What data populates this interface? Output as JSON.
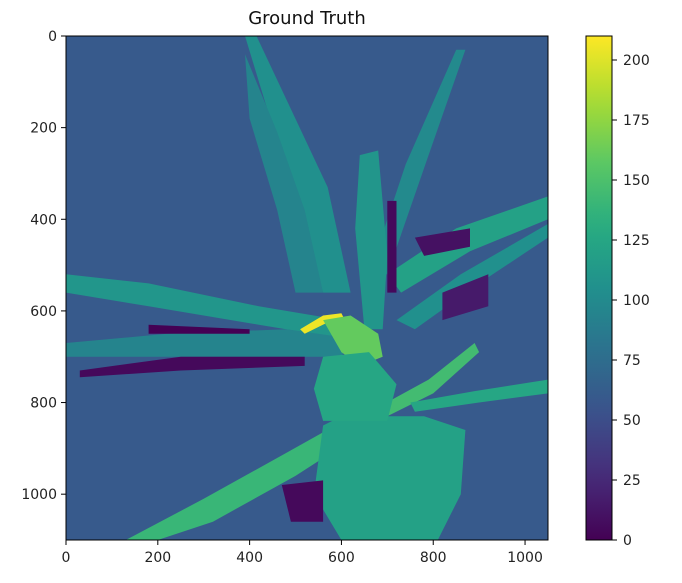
{
  "chart_data": [
    {
      "type": "heatmap",
      "title": "Ground Truth",
      "xlabel": "",
      "ylabel": "",
      "xlim": [
        0,
        1050
      ],
      "ylim": [
        1100,
        0
      ],
      "x_ticks": [
        0,
        200,
        400,
        600,
        800,
        1000
      ],
      "y_ticks": [
        0,
        200,
        400,
        600,
        800,
        1000
      ],
      "colormap": "viridis",
      "background_value": 60,
      "regions": [
        {
          "name": "upper-left-leaf",
          "value": 105,
          "points": [
            [
              390,
              0
            ],
            [
              415,
              0
            ],
            [
              570,
              330
            ],
            [
              620,
              560
            ],
            [
              560,
              560
            ]
          ]
        },
        {
          "name": "left-upright-leaf",
          "value": 95,
          "points": [
            [
              390,
              40
            ],
            [
              460,
              210
            ],
            [
              520,
              380
            ],
            [
              560,
              560
            ],
            [
              500,
              560
            ],
            [
              460,
              380
            ],
            [
              400,
              180
            ]
          ]
        },
        {
          "name": "right-upright-leaf",
          "value": 100,
          "points": [
            [
              850,
              30
            ],
            [
              870,
              30
            ],
            [
              790,
              260
            ],
            [
              700,
              520
            ],
            [
              660,
              520
            ],
            [
              740,
              280
            ]
          ]
        },
        {
          "name": "center-leaf",
          "value": 110,
          "points": [
            [
              640,
              260
            ],
            [
              680,
              250
            ],
            [
              700,
              480
            ],
            [
              690,
              640
            ],
            [
              650,
              640
            ],
            [
              630,
              420
            ]
          ]
        },
        {
          "name": "upper-right-leaf",
          "value": 120,
          "points": [
            [
              1050,
              350
            ],
            [
              1050,
              400
            ],
            [
              880,
              470
            ],
            [
              730,
              560
            ],
            [
              700,
              520
            ],
            [
              850,
              420
            ]
          ]
        },
        {
          "name": "left-leaf",
          "value": 110,
          "points": [
            [
              0,
              520
            ],
            [
              180,
              540
            ],
            [
              420,
              590
            ],
            [
              600,
              620
            ],
            [
              600,
              660
            ],
            [
              420,
              630
            ],
            [
              180,
              590
            ],
            [
              0,
              560
            ]
          ]
        },
        {
          "name": "lower-left-leaf",
          "value": 95,
          "points": [
            [
              0,
              670
            ],
            [
              220,
              650
            ],
            [
              480,
              640
            ],
            [
              620,
              660
            ],
            [
              600,
              700
            ],
            [
              400,
              700
            ],
            [
              180,
              700
            ],
            [
              0,
              700
            ]
          ]
        },
        {
          "name": "right-mid-leaf",
          "value": 105,
          "points": [
            [
              1050,
              410
            ],
            [
              1050,
              440
            ],
            [
              900,
              540
            ],
            [
              760,
              640
            ],
            [
              720,
              620
            ],
            [
              860,
              520
            ]
          ]
        },
        {
          "name": "curl-yellow",
          "value": 205,
          "points": [
            [
              510,
              640
            ],
            [
              560,
              610
            ],
            [
              600,
              605
            ],
            [
              610,
              625
            ],
            [
              570,
              625
            ],
            [
              520,
              650
            ]
          ]
        },
        {
          "name": "curl-green",
          "value": 160,
          "points": [
            [
              560,
              620
            ],
            [
              620,
              610
            ],
            [
              680,
              650
            ],
            [
              690,
              700
            ],
            [
              640,
              720
            ],
            [
              600,
              690
            ]
          ]
        },
        {
          "name": "right-lower-leaf",
          "value": 145,
          "points": [
            [
              890,
              670
            ],
            [
              900,
              690
            ],
            [
              800,
              780
            ],
            [
              700,
              830
            ],
            [
              680,
              810
            ],
            [
              790,
              750
            ]
          ]
        },
        {
          "name": "lower-right-leaf",
          "value": 125,
          "points": [
            [
              1050,
              750
            ],
            [
              1050,
              780
            ],
            [
              900,
              800
            ],
            [
              760,
              820
            ],
            [
              750,
              800
            ],
            [
              890,
              775
            ]
          ]
        },
        {
          "name": "lower-diagonal-leaf",
          "value": 140,
          "points": [
            [
              640,
              820
            ],
            [
              670,
              850
            ],
            [
              500,
              960
            ],
            [
              320,
              1060
            ],
            [
              200,
              1100
            ],
            [
              130,
              1100
            ],
            [
              300,
              1010
            ],
            [
              480,
              910
            ]
          ]
        },
        {
          "name": "pot",
          "value": 120,
          "points": [
            [
              560,
              850
            ],
            [
              600,
              830
            ],
            [
              780,
              830
            ],
            [
              870,
              860
            ],
            [
              860,
              1000
            ],
            [
              810,
              1100
            ],
            [
              600,
              1100
            ],
            [
              540,
              1000
            ]
          ]
        },
        {
          "name": "stem-mass",
          "value": 125,
          "points": [
            [
              560,
              700
            ],
            [
              660,
              690
            ],
            [
              720,
              760
            ],
            [
              700,
              840
            ],
            [
              560,
              840
            ],
            [
              540,
              770
            ]
          ]
        },
        {
          "name": "dark-stripe-1",
          "value": 5,
          "points": [
            [
              700,
              360
            ],
            [
              720,
              360
            ],
            [
              720,
              560
            ],
            [
              700,
              560
            ]
          ]
        },
        {
          "name": "dark-stripe-2",
          "value": 10,
          "points": [
            [
              760,
              440
            ],
            [
              880,
              420
            ],
            [
              880,
              460
            ],
            [
              780,
              480
            ]
          ]
        },
        {
          "name": "dark-stripe-3",
          "value": 5,
          "points": [
            [
              30,
              730
            ],
            [
              250,
              700
            ],
            [
              520,
              700
            ],
            [
              520,
              720
            ],
            [
              250,
              730
            ],
            [
              30,
              745
            ]
          ]
        },
        {
          "name": "dark-stripe-4",
          "value": 0,
          "points": [
            [
              180,
              630
            ],
            [
              400,
              640
            ],
            [
              400,
              650
            ],
            [
              180,
              650
            ]
          ]
        },
        {
          "name": "dark-blob-lower",
          "value": 5,
          "points": [
            [
              470,
              980
            ],
            [
              560,
              970
            ],
            [
              560,
              1060
            ],
            [
              490,
              1060
            ]
          ]
        },
        {
          "name": "dark-blob-right",
          "value": 15,
          "points": [
            [
              820,
              560
            ],
            [
              920,
              520
            ],
            [
              920,
              590
            ],
            [
              820,
              620
            ]
          ]
        }
      ],
      "colorbar": {
        "min": 0,
        "max": 210,
        "ticks": [
          0,
          25,
          50,
          75,
          100,
          125,
          150,
          175,
          200
        ],
        "tick_labels": [
          "0",
          "25",
          "50",
          "75",
          "100",
          "125",
          "150",
          "175",
          "200"
        ]
      }
    }
  ]
}
